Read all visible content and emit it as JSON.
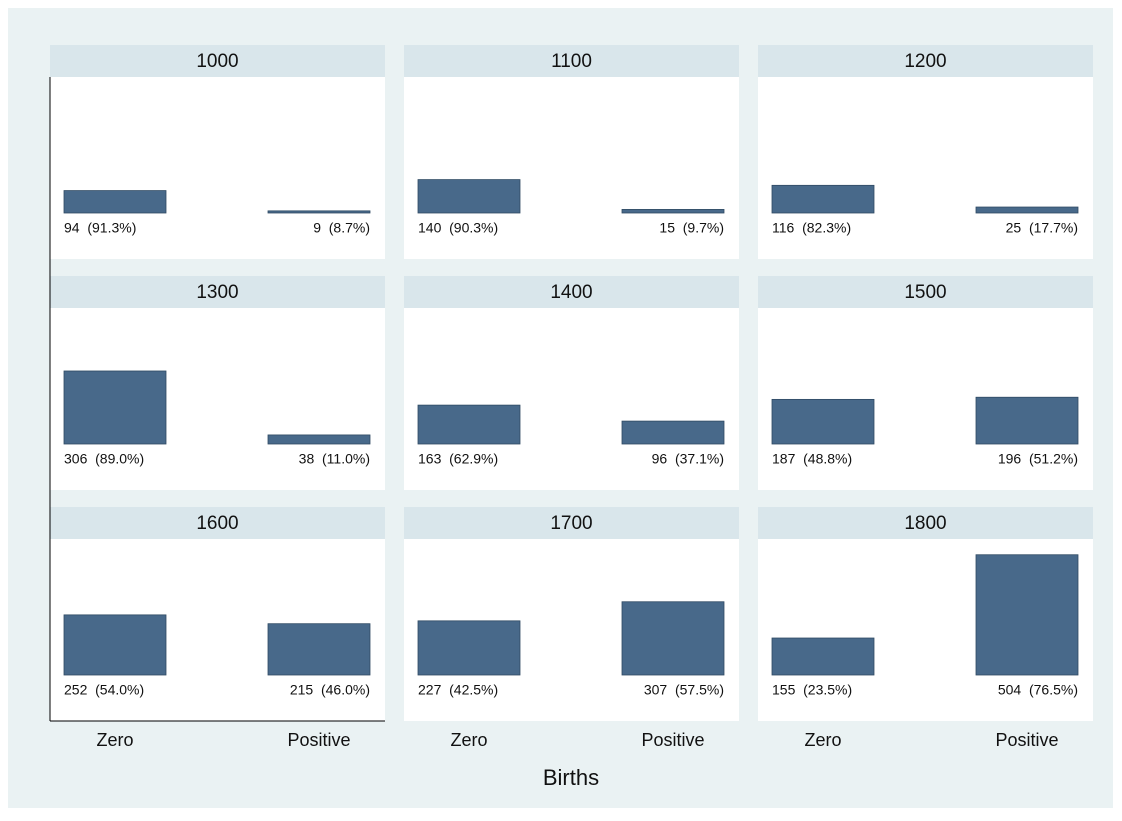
{
  "chart_data": {
    "type": "bar",
    "xlabel": "Births",
    "categories": [
      "Zero",
      "Positive"
    ],
    "color": "#48698a",
    "ylim": [
      0,
      570
    ],
    "panels": [
      {
        "title": "1000",
        "values": [
          94,
          9
        ],
        "value_labels": [
          "94  (91.3%)",
          "9  (8.7%)"
        ]
      },
      {
        "title": "1100",
        "values": [
          140,
          15
        ],
        "value_labels": [
          "140  (90.3%)",
          "15  (9.7%)"
        ]
      },
      {
        "title": "1200",
        "values": [
          116,
          25
        ],
        "value_labels": [
          "116  (82.3%)",
          "25  (17.7%)"
        ]
      },
      {
        "title": "1300",
        "values": [
          306,
          38
        ],
        "value_labels": [
          "306  (89.0%)",
          "38  (11.0%)"
        ]
      },
      {
        "title": "1400",
        "values": [
          163,
          96
        ],
        "value_labels": [
          "163  (62.9%)",
          "96  (37.1%)"
        ]
      },
      {
        "title": "1500",
        "values": [
          187,
          196
        ],
        "value_labels": [
          "187  (48.8%)",
          "196  (51.2%)"
        ]
      },
      {
        "title": "1600",
        "values": [
          252,
          215
        ],
        "value_labels": [
          "252  (54.0%)",
          "215  (46.0%)"
        ]
      },
      {
        "title": "1700",
        "values": [
          227,
          307
        ],
        "value_labels": [
          "227  (42.5%)",
          "307  (57.5%)"
        ]
      },
      {
        "title": "1800",
        "values": [
          155,
          504
        ],
        "value_labels": [
          "155  (23.5%)",
          "504  (76.5%)"
        ]
      }
    ]
  }
}
